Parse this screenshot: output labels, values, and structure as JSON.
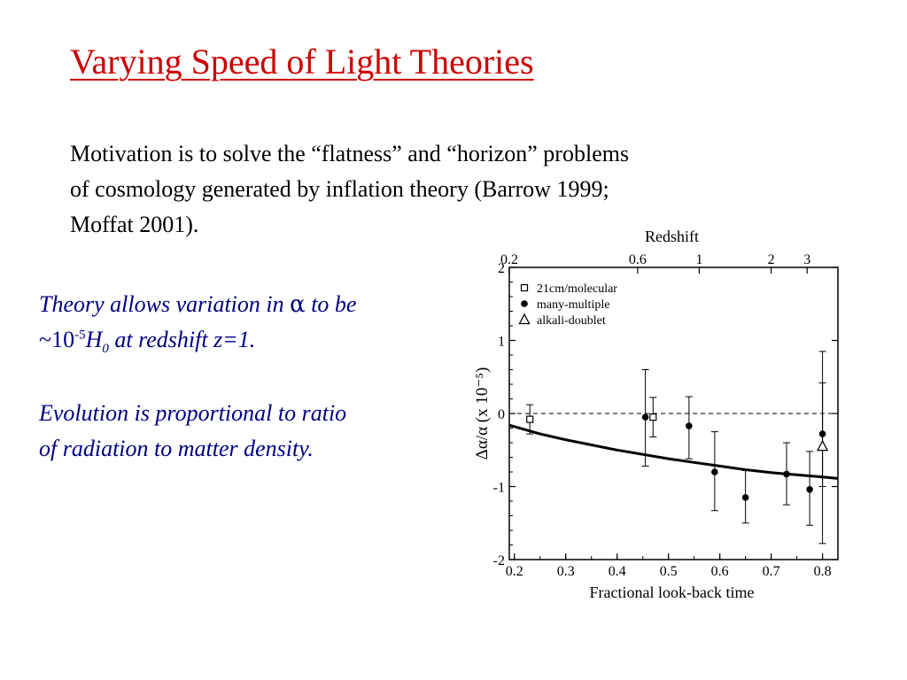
{
  "slide": {
    "title": "Varying Speed of Light Theories",
    "intro_lines": [
      "Motivation is to solve the “flatness” and “horizon” problems",
      "of cosmology generated by inflation theory (Barrow 1999;",
      "Moffat 2001)."
    ],
    "theory": {
      "line1_a": "Theory allows variation in ",
      "alpha": "α",
      "line1_b": " to be",
      "line2_tilde": "~10",
      "line2_exp": "-5",
      "line2_H": "H",
      "line2_sub": "0",
      "line2_rest": " at redshift z=1."
    },
    "evolution_lines": [
      "Evolution is proportional to ratio",
      "of radiation to matter density."
    ],
    "colors": {
      "title": "#cc0000",
      "side_text": "#000080",
      "body_text": "#000000"
    }
  },
  "chart_data": {
    "type": "scatter",
    "title": "",
    "xlabel": "Fractional look-back time",
    "ylabel": "Δα/α (x 10⁻⁵)",
    "xlim": [
      0.19,
      0.83
    ],
    "ylim": [
      -2,
      2
    ],
    "x_ticks": [
      "0.2",
      "0.3",
      "0.4",
      "0.5",
      "0.6",
      "0.7",
      "0.8"
    ],
    "y_ticks": [
      "2",
      "1",
      "0",
      "-1",
      "-2"
    ],
    "top_axis": {
      "label": "Redshift",
      "ticks": [
        {
          "label": "0.2",
          "x": 0.19
        },
        {
          "label": "0.6",
          "x": 0.44
        },
        {
          "label": "1",
          "x": 0.56
        },
        {
          "label": "2",
          "x": 0.7
        },
        {
          "label": "3",
          "x": 0.77
        }
      ]
    },
    "reference_line": {
      "y": 0,
      "style": "dashed"
    },
    "legend": {
      "placement": "top-left",
      "entries": [
        {
          "label": "21cm/molecular",
          "marker": "square-open"
        },
        {
          "label": "many-multiple",
          "marker": "circle-filled"
        },
        {
          "label": "alkali-doublet",
          "marker": "triangle-open"
        }
      ]
    },
    "series": [
      {
        "name": "21cm/molecular",
        "marker": "square-open",
        "points": [
          {
            "x": 0.23,
            "y": -0.08,
            "yerr_low": -0.28,
            "yerr_high": 0.12
          },
          {
            "x": 0.47,
            "y": -0.05,
            "yerr_low": -0.32,
            "yerr_high": 0.22
          }
        ]
      },
      {
        "name": "many-multiple",
        "marker": "circle-filled",
        "points": [
          {
            "x": 0.455,
            "y": -0.05,
            "yerr_low": -0.72,
            "yerr_high": 0.6
          },
          {
            "x": 0.54,
            "y": -0.17,
            "yerr_low": -0.62,
            "yerr_high": 0.23
          },
          {
            "x": 0.59,
            "y": -0.8,
            "yerr_low": -1.33,
            "yerr_high": -0.25
          },
          {
            "x": 0.65,
            "y": -1.15,
            "yerr_low": -1.5,
            "yerr_high": -0.78
          },
          {
            "x": 0.73,
            "y": -0.83,
            "yerr_low": -1.25,
            "yerr_high": -0.4
          },
          {
            "x": 0.775,
            "y": -1.04,
            "yerr_low": -1.53,
            "yerr_high": -0.52
          },
          {
            "x": 0.8,
            "y": -0.28,
            "yerr_low": -1.0,
            "yerr_high": 0.42
          }
        ]
      },
      {
        "name": "alkali-doublet",
        "marker": "triangle-open",
        "points": [
          {
            "x": 0.8,
            "y": -0.45,
            "yerr_low": -1.78,
            "yerr_high": 0.85
          }
        ]
      }
    ],
    "model_curve": {
      "x": [
        0.19,
        0.25,
        0.3,
        0.35,
        0.4,
        0.45,
        0.5,
        0.55,
        0.6,
        0.65,
        0.7,
        0.75,
        0.8,
        0.83
      ],
      "y": [
        -0.16,
        -0.28,
        -0.36,
        -0.43,
        -0.5,
        -0.56,
        -0.62,
        -0.67,
        -0.72,
        -0.77,
        -0.81,
        -0.84,
        -0.87,
        -0.89
      ]
    }
  }
}
